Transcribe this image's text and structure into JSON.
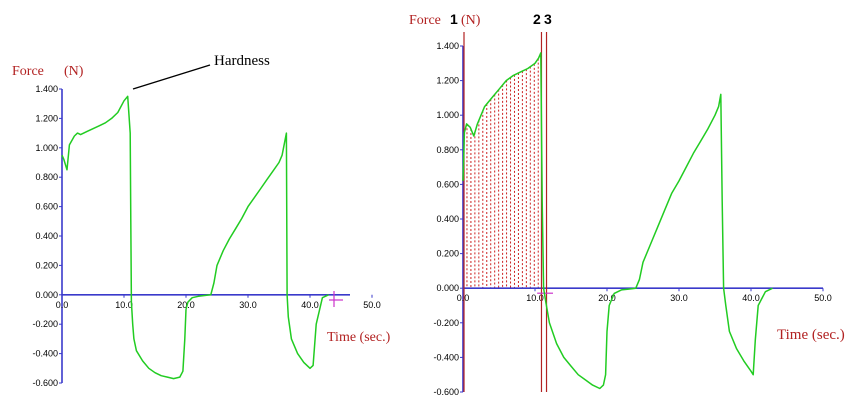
{
  "colors": {
    "axis": "#3a3acb",
    "curve": "#22cc22",
    "label": "#b22222",
    "hatch": "#cc2222",
    "marker": "#b22222",
    "origin_cross": "#cc33cc"
  },
  "chart_data": [
    {
      "type": "line",
      "ylabel_force": "Force",
      "ylabel_unit": "(N)",
      "xlabel": "Time (sec.)",
      "annotation": "Hardness",
      "xlim": [
        0,
        50
      ],
      "ylim": [
        -0.6,
        1.4
      ],
      "x_ticks": [
        "0.0",
        "10.0",
        "20.0",
        "30.0",
        "40.0",
        "50.0"
      ],
      "y_ticks": [
        "1.400",
        "1.200",
        "1.000",
        "0.800",
        "0.600",
        "0.400",
        "0.200",
        "0.000",
        "-0.200",
        "-0.400",
        "-0.600"
      ],
      "grid": false,
      "series": [
        {
          "x": [
            0,
            0.3,
            0.8,
            1.2,
            2,
            2.5,
            3,
            4,
            5,
            6,
            7,
            8,
            9,
            10,
            10.6,
            11,
            11.1,
            11.2,
            11.4,
            11.6,
            12,
            13,
            14,
            15,
            16,
            17,
            18,
            19,
            19.5,
            19.8,
            20,
            20.3,
            21,
            22,
            23,
            24,
            24.5,
            25,
            26,
            27,
            28,
            29,
            30,
            31,
            32,
            33,
            34,
            35,
            35.5,
            36.2,
            36.3,
            36.5,
            37,
            38,
            39,
            40,
            40.5,
            41,
            42,
            43
          ],
          "values": [
            0.95,
            0.92,
            0.85,
            1.02,
            1.08,
            1.1,
            1.09,
            1.11,
            1.13,
            1.15,
            1.17,
            1.2,
            1.24,
            1.32,
            1.35,
            1.1,
            0.5,
            -0.05,
            -0.2,
            -0.3,
            -0.38,
            -0.45,
            -0.5,
            -0.53,
            -0.55,
            -0.56,
            -0.57,
            -0.56,
            -0.52,
            -0.3,
            -0.1,
            -0.05,
            -0.02,
            -0.01,
            -0.005,
            0.0,
            0.08,
            0.2,
            0.3,
            0.38,
            0.45,
            0.52,
            0.6,
            0.66,
            0.72,
            0.78,
            0.84,
            0.9,
            0.95,
            1.1,
            0.0,
            -0.15,
            -0.3,
            -0.4,
            -0.46,
            -0.5,
            -0.48,
            -0.2,
            -0.02,
            0.0
          ]
        }
      ]
    },
    {
      "type": "line",
      "ylabel_force": "Force",
      "ylabel_unit": "(N)",
      "marker_labels": [
        "1",
        "2",
        "3"
      ],
      "xlabel": "Time (sec.)",
      "xlim": [
        0,
        50
      ],
      "ylim": [
        -0.6,
        1.4
      ],
      "x_ticks": [
        "0.0",
        "10.0",
        "20.0",
        "30.0",
        "40.0",
        "50.0"
      ],
      "y_ticks": [
        "1.400",
        "1.200",
        "1.000",
        "0.800",
        "0.600",
        "0.400",
        "0.200",
        "0.000",
        "-0.200",
        "-0.400",
        "-0.600"
      ],
      "grid": false,
      "shaded_area": {
        "from_x": 0,
        "to_x": 10.8
      },
      "marker_lines_x": [
        10.9,
        11.6
      ],
      "series": [
        {
          "x": [
            0,
            0.2,
            0.5,
            1,
            1.5,
            2,
            3,
            4,
            5,
            6,
            7,
            8,
            9,
            10,
            10.5,
            10.8,
            11,
            11.2,
            11.5,
            12,
            13,
            14,
            15,
            16,
            17,
            18,
            19,
            19.5,
            19.8,
            20,
            20.3,
            21,
            22,
            23,
            24,
            24.5,
            25,
            26,
            27,
            28,
            29,
            30,
            31,
            32,
            33,
            34,
            35,
            35.5,
            35.8,
            36,
            36.2,
            36.5,
            37,
            38,
            39,
            40,
            40.3,
            40.6,
            41,
            42,
            43
          ],
          "values": [
            0.62,
            0.9,
            0.95,
            0.93,
            0.88,
            0.95,
            1.05,
            1.1,
            1.15,
            1.2,
            1.23,
            1.25,
            1.27,
            1.3,
            1.33,
            1.36,
            0.5,
            0.0,
            -0.08,
            -0.2,
            -0.32,
            -0.4,
            -0.45,
            -0.5,
            -0.53,
            -0.56,
            -0.58,
            -0.56,
            -0.5,
            -0.25,
            -0.1,
            -0.03,
            -0.01,
            -0.005,
            0.0,
            0.05,
            0.15,
            0.25,
            0.35,
            0.45,
            0.55,
            0.62,
            0.7,
            0.78,
            0.85,
            0.92,
            1.0,
            1.05,
            1.12,
            0.5,
            0.0,
            -0.1,
            -0.25,
            -0.35,
            -0.42,
            -0.48,
            -0.5,
            -0.3,
            -0.1,
            -0.02,
            0.0
          ]
        }
      ]
    }
  ]
}
